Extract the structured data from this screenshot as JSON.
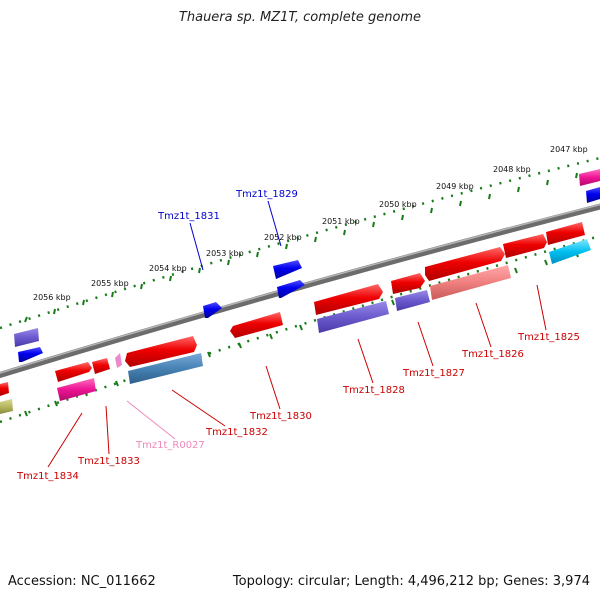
{
  "title": "Thauera sp. MZ1T, complete genome",
  "footer": {
    "accession": "Accession: NC_011662",
    "summary": "Topology: circular; Length: 4,496,212 bp; Genes: 3,974"
  },
  "ruler_labels": [
    "2047 kbp",
    "2048 kbp",
    "2049 kbp",
    "2050 kbp",
    "2051 kbp",
    "2052 kbp",
    "2053 kbp",
    "2054 kbp",
    "2055 kbp",
    "2056 kbp"
  ],
  "gene_labels": {
    "g1829": "Tmz1t_1829",
    "g1831": "Tmz1t_1831",
    "g1825": "Tmz1t_1825",
    "g1826": "Tmz1t_1826",
    "g1827": "Tmz1t_1827",
    "g1828": "Tmz1t_1828",
    "g1830": "Tmz1t_1830",
    "g1832": "Tmz1t_1832",
    "gR0027": "Tmz1t_R0027",
    "g1833": "Tmz1t_1833",
    "g1834": "Tmz1t_1834"
  },
  "colors": {
    "forward_red": "#ee0000",
    "blue": "#0000ee",
    "label_red": "#cc0000",
    "label_blue": "#0000cc",
    "label_pink": "#ee88bb",
    "backbone": "#777777",
    "tick_green": "#1a7a1a"
  }
}
